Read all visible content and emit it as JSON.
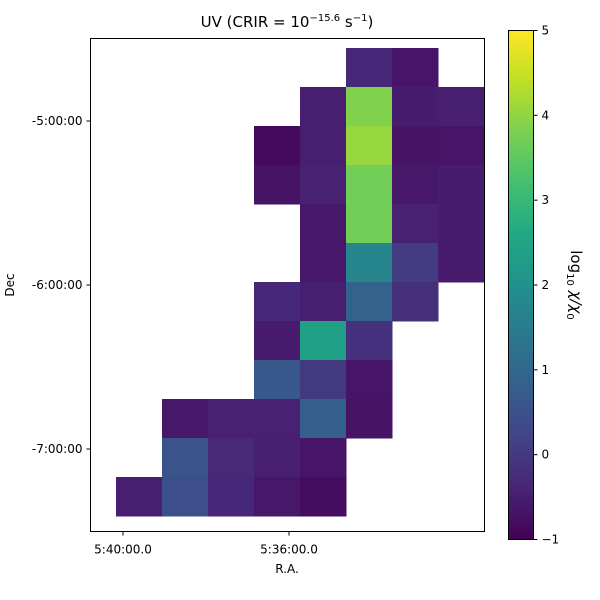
{
  "chart_data": {
    "type": "heatmap",
    "title": {
      "main": "UV (CRIR = 10",
      "exp": "−15.6",
      "unit": " s",
      "unit_exp": "−1",
      "close": ")"
    },
    "xlabel": "R.A.",
    "ylabel": "Dec",
    "xticks": [
      "5:40:00.0",
      "5:36:00.0"
    ],
    "yticks": [
      "-5:00:00",
      "-6:00:00",
      "-7:00:00"
    ],
    "colorbar": {
      "label": {
        "base": "log",
        "sub": "10",
        "rest": " χ/χ",
        "sub2": "0"
      },
      "min": -1,
      "max": 5,
      "ticks": [
        "−1",
        "0",
        "1",
        "2",
        "3",
        "4",
        "5"
      ],
      "colormap": "viridis"
    },
    "grid": false,
    "grid_size": {
      "cols": 8,
      "rows": 12
    },
    "cells_note": "row 0 = top (north), col 0 = left (east); values are log10 chi/chi0",
    "cells": [
      {
        "row": 0,
        "col": 5,
        "value": -0.35
      },
      {
        "row": 0,
        "col": 6,
        "value": -0.65
      },
      {
        "row": 1,
        "col": 4,
        "value": -0.5
      },
      {
        "row": 1,
        "col": 5,
        "value": 3.85
      },
      {
        "row": 1,
        "col": 6,
        "value": -0.55
      },
      {
        "row": 1,
        "col": 7,
        "value": -0.5
      },
      {
        "row": 2,
        "col": 3,
        "value": -0.85
      },
      {
        "row": 2,
        "col": 4,
        "value": -0.5
      },
      {
        "row": 2,
        "col": 5,
        "value": 4.05
      },
      {
        "row": 2,
        "col": 6,
        "value": -0.7
      },
      {
        "row": 2,
        "col": 7,
        "value": -0.65
      },
      {
        "row": 3,
        "col": 3,
        "value": -0.7
      },
      {
        "row": 3,
        "col": 4,
        "value": -0.45
      },
      {
        "row": 3,
        "col": 5,
        "value": 3.7
      },
      {
        "row": 3,
        "col": 6,
        "value": -0.6
      },
      {
        "row": 3,
        "col": 7,
        "value": -0.55
      },
      {
        "row": 4,
        "col": 4,
        "value": -0.6
      },
      {
        "row": 4,
        "col": 5,
        "value": 3.7
      },
      {
        "row": 4,
        "col": 6,
        "value": -0.45
      },
      {
        "row": 4,
        "col": 7,
        "value": -0.55
      },
      {
        "row": 5,
        "col": 4,
        "value": -0.6
      },
      {
        "row": 5,
        "col": 5,
        "value": 1.7
      },
      {
        "row": 5,
        "col": 6,
        "value": 0.05
      },
      {
        "row": 5,
        "col": 7,
        "value": -0.55
      },
      {
        "row": 6,
        "col": 3,
        "value": -0.35
      },
      {
        "row": 6,
        "col": 4,
        "value": -0.5
      },
      {
        "row": 6,
        "col": 5,
        "value": 0.9
      },
      {
        "row": 6,
        "col": 6,
        "value": -0.2
      },
      {
        "row": 7,
        "col": 3,
        "value": -0.55
      },
      {
        "row": 7,
        "col": 4,
        "value": 2.4
      },
      {
        "row": 7,
        "col": 5,
        "value": -0.15
      },
      {
        "row": 8,
        "col": 3,
        "value": 0.65
      },
      {
        "row": 8,
        "col": 4,
        "value": 0.0
      },
      {
        "row": 8,
        "col": 5,
        "value": -0.65
      },
      {
        "row": 9,
        "col": 1,
        "value": -0.6
      },
      {
        "row": 9,
        "col": 2,
        "value": -0.45
      },
      {
        "row": 9,
        "col": 3,
        "value": -0.45
      },
      {
        "row": 9,
        "col": 4,
        "value": 0.8
      },
      {
        "row": 9,
        "col": 5,
        "value": -0.7
      },
      {
        "row": 10,
        "col": 1,
        "value": 0.55
      },
      {
        "row": 10,
        "col": 2,
        "value": -0.3
      },
      {
        "row": 10,
        "col": 3,
        "value": -0.5
      },
      {
        "row": 10,
        "col": 4,
        "value": -0.65
      },
      {
        "row": 11,
        "col": 0,
        "value": -0.5
      },
      {
        "row": 11,
        "col": 1,
        "value": 0.45
      },
      {
        "row": 11,
        "col": 2,
        "value": -0.35
      },
      {
        "row": 11,
        "col": 3,
        "value": -0.6
      },
      {
        "row": 11,
        "col": 4,
        "value": -0.8
      }
    ]
  }
}
